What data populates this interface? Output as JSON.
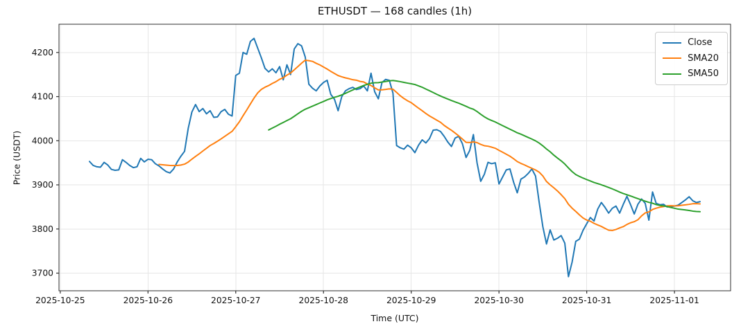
{
  "chart_data": {
    "type": "line",
    "title": "ETHUSDT — 168 candles (1h)",
    "xlabel": "Time (UTC)",
    "ylabel": "Price (USDT)",
    "grid": true,
    "legend_position": "upper right",
    "x_description": "168 hourly candles, index 0–167, first candle 2025-10-25 ~08:00 UTC",
    "xlim_index": [
      -8.35,
      175.35
    ],
    "ylim": [
      3660,
      4264
    ],
    "y_ticks": [
      3700,
      3800,
      3900,
      4000,
      4100,
      4200
    ],
    "x_ticks": [
      {
        "index": -8,
        "label": "2025-10-25"
      },
      {
        "index": 16,
        "label": "2025-10-26"
      },
      {
        "index": 40,
        "label": "2025-10-27"
      },
      {
        "index": 64,
        "label": "2025-10-28"
      },
      {
        "index": 88,
        "label": "2025-10-29"
      },
      {
        "index": 112,
        "label": "2025-10-30"
      },
      {
        "index": 136,
        "label": "2025-10-31"
      },
      {
        "index": 160,
        "label": "2025-11-01"
      }
    ],
    "series": [
      {
        "name": "Close",
        "type": "line",
        "color": "#1f77b4",
        "values": [
          3953,
          3944,
          3941,
          3940,
          3951,
          3945,
          3935,
          3933,
          3934,
          3957,
          3951,
          3944,
          3939,
          3941,
          3960,
          3952,
          3958,
          3957,
          3948,
          3943,
          3936,
          3930,
          3927,
          3936,
          3952,
          3965,
          3976,
          4028,
          4065,
          4082,
          4066,
          4073,
          4061,
          4068,
          4053,
          4054,
          4066,
          4071,
          4060,
          4056,
          4148,
          4153,
          4200,
          4196,
          4225,
          4232,
          4210,
          4188,
          4164,
          4156,
          4163,
          4154,
          4168,
          4138,
          4172,
          4150,
          4208,
          4220,
          4215,
          4190,
          4128,
          4119,
          4113,
          4124,
          4132,
          4137,
          4105,
          4094,
          4068,
          4100,
          4113,
          4118,
          4121,
          4116,
          4118,
          4124,
          4113,
          4153,
          4111,
          4095,
          4132,
          4139,
          4137,
          4108,
          3989,
          3984,
          3981,
          3990,
          3984,
          3973,
          3990,
          4002,
          3995,
          4005,
          4024,
          4025,
          4021,
          4010,
          3997,
          3987,
          4006,
          4010,
          3993,
          3962,
          3978,
          4014,
          3950,
          3908,
          3924,
          3951,
          3948,
          3950,
          3902,
          3918,
          3934,
          3936,
          3906,
          3882,
          3913,
          3918,
          3926,
          3936,
          3920,
          3860,
          3805,
          3766,
          3798,
          3775,
          3779,
          3785,
          3768,
          3692,
          3725,
          3772,
          3777,
          3797,
          3812,
          3826,
          3818,
          3845,
          3860,
          3849,
          3836,
          3847,
          3852,
          3836,
          3856,
          3874,
          3855,
          3834,
          3856,
          3868,
          3858,
          3820,
          3884,
          3858,
          3855,
          3856,
          3850,
          3851,
          3852,
          3854,
          3860,
          3866,
          3873,
          3864,
          3860,
          3862
        ]
      },
      {
        "name": "SMA20",
        "type": "line",
        "color": "#ff7f0e",
        "derived_from": "Close",
        "window": 20
      },
      {
        "name": "SMA50",
        "type": "line",
        "color": "#2ca02c",
        "derived_from": "Close",
        "window": 50
      }
    ]
  }
}
